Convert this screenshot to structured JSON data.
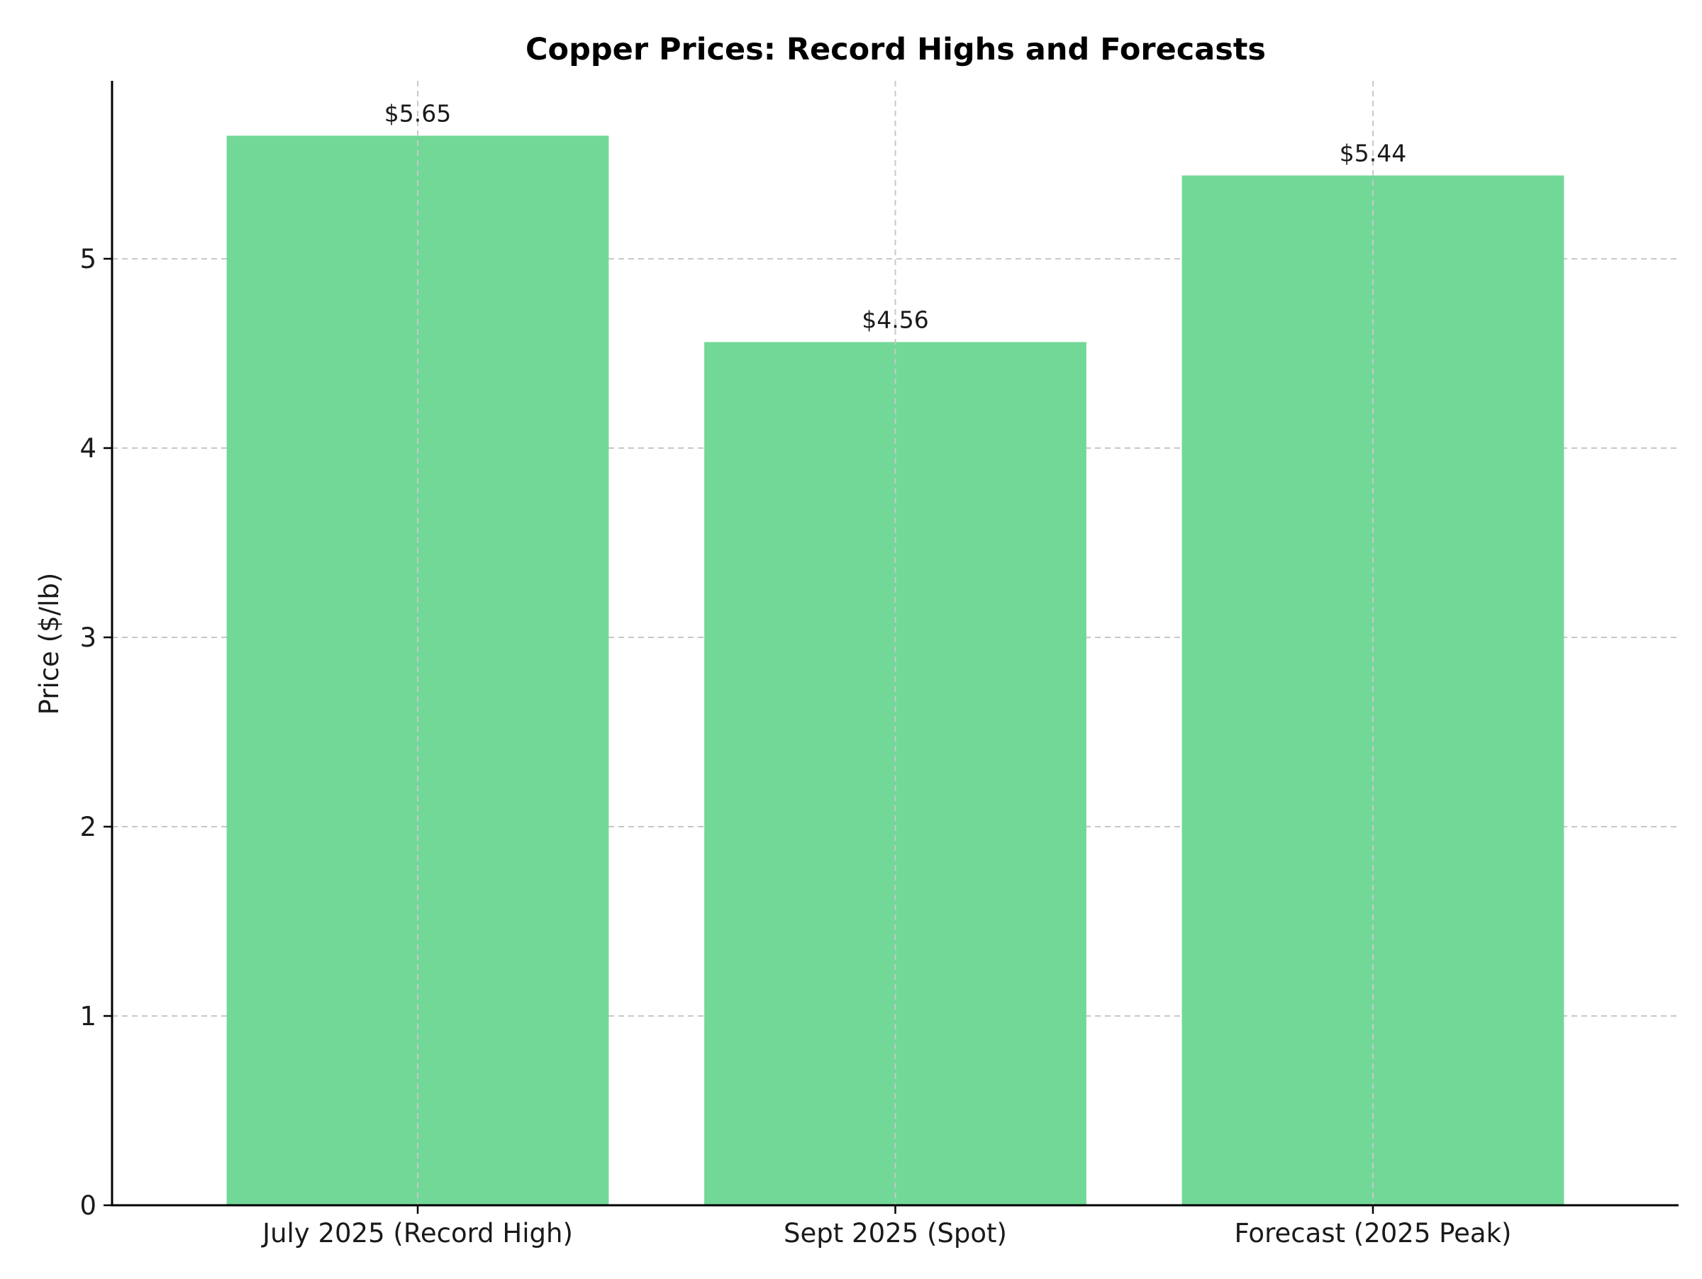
{
  "chart_data": {
    "type": "bar",
    "title": "Copper Prices: Record Highs and Forecasts",
    "xlabel": "",
    "ylabel": "Price ($/lb)",
    "categories": [
      "July 2025 (Record High)",
      "Sept 2025 (Spot)",
      "Forecast (2025 Peak)"
    ],
    "values": [
      5.65,
      4.56,
      5.44
    ],
    "data_labels": [
      "$5.65",
      "$4.56",
      "$5.44"
    ],
    "yticks": [
      0,
      1,
      2,
      3,
      4,
      5
    ],
    "ylim": [
      0,
      5.94
    ],
    "grid": true,
    "bar_color": "#72d897"
  }
}
